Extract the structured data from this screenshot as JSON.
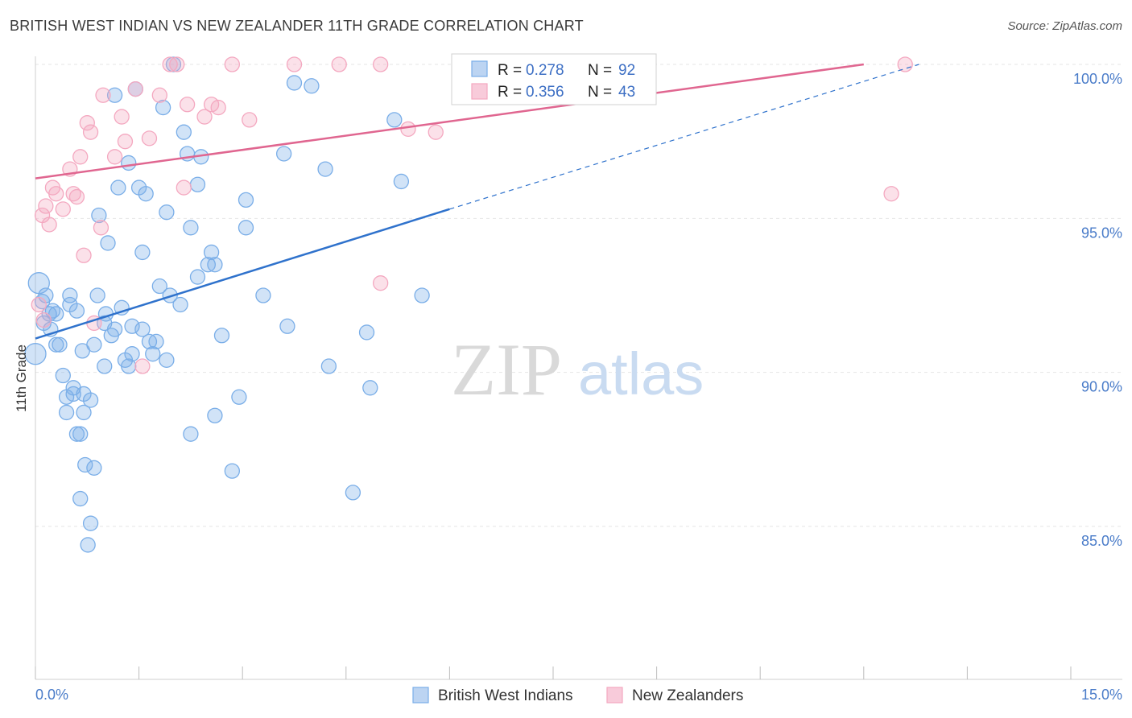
{
  "title": "BRITISH WEST INDIAN VS NEW ZEALANDER 11TH GRADE CORRELATION CHART",
  "source": "Source: ZipAtlas.com",
  "watermark": {
    "zip": "ZIP",
    "atlas": "atlas"
  },
  "chart_data": {
    "type": "scatter",
    "ylabel": "11th Grade",
    "xlim": [
      0,
      15
    ],
    "ylim": [
      80.0,
      100.7
    ],
    "x_tick_labels": {
      "left": "0.0%",
      "right": "15.0%"
    },
    "y_ticks": [
      {
        "value": 100,
        "label": "100.0%"
      },
      {
        "value": 95,
        "label": "95.0%"
      },
      {
        "value": 90,
        "label": "90.0%"
      },
      {
        "value": 85,
        "label": "85.0%"
      }
    ],
    "legend": {
      "entries": [
        {
          "r_label": "R =",
          "r_value": "0.278",
          "n_label": "N =",
          "n_value": "92"
        },
        {
          "r_label": "R =",
          "r_value": "0.356",
          "n_label": "N =",
          "n_value": "43"
        }
      ]
    },
    "series": [
      {
        "name": "British West Indians",
        "color": "#7aaee8",
        "line_color": "#2f72cc",
        "trend": {
          "x0": 0.0,
          "y0": 91.1,
          "x1": 6.0,
          "y1": 95.3,
          "dash_to_x": 12.8,
          "dash_to_y": 100.0
        },
        "points": [
          [
            0.0,
            90.6
          ],
          [
            0.05,
            92.9
          ],
          [
            0.1,
            92.3
          ],
          [
            0.12,
            91.6
          ],
          [
            0.15,
            92.5
          ],
          [
            0.2,
            91.9
          ],
          [
            0.22,
            91.4
          ],
          [
            0.25,
            92.0
          ],
          [
            0.3,
            90.9
          ],
          [
            0.3,
            91.9
          ],
          [
            0.35,
            90.9
          ],
          [
            0.4,
            89.9
          ],
          [
            0.45,
            89.2
          ],
          [
            0.45,
            88.7
          ],
          [
            0.5,
            92.5
          ],
          [
            0.5,
            92.2
          ],
          [
            0.55,
            89.5
          ],
          [
            0.55,
            89.3
          ],
          [
            0.6,
            92.0
          ],
          [
            0.6,
            88.0
          ],
          [
            0.65,
            88.0
          ],
          [
            0.65,
            85.9
          ],
          [
            0.68,
            90.7
          ],
          [
            0.7,
            88.7
          ],
          [
            0.7,
            89.3
          ],
          [
            0.72,
            87.0
          ],
          [
            0.76,
            84.4
          ],
          [
            0.8,
            89.1
          ],
          [
            0.8,
            85.1
          ],
          [
            0.85,
            86.9
          ],
          [
            0.85,
            90.9
          ],
          [
            0.9,
            92.5
          ],
          [
            0.92,
            95.1
          ],
          [
            1.0,
            91.6
          ],
          [
            1.0,
            90.2
          ],
          [
            1.02,
            91.9
          ],
          [
            1.05,
            94.2
          ],
          [
            1.1,
            91.2
          ],
          [
            1.15,
            91.4
          ],
          [
            1.15,
            99.0
          ],
          [
            1.2,
            96.0
          ],
          [
            1.25,
            92.1
          ],
          [
            1.3,
            90.4
          ],
          [
            1.35,
            96.8
          ],
          [
            1.35,
            90.2
          ],
          [
            1.4,
            91.5
          ],
          [
            1.4,
            90.6
          ],
          [
            1.45,
            99.2
          ],
          [
            1.5,
            96.0
          ],
          [
            1.55,
            91.4
          ],
          [
            1.55,
            93.9
          ],
          [
            1.6,
            95.8
          ],
          [
            1.65,
            91.0
          ],
          [
            1.7,
            90.6
          ],
          [
            1.75,
            91.0
          ],
          [
            1.8,
            92.8
          ],
          [
            1.85,
            98.6
          ],
          [
            1.9,
            90.4
          ],
          [
            1.9,
            95.2
          ],
          [
            1.95,
            92.5
          ],
          [
            2.0,
            100.0
          ],
          [
            2.1,
            92.2
          ],
          [
            2.15,
            97.8
          ],
          [
            2.2,
            97.1
          ],
          [
            2.25,
            94.7
          ],
          [
            2.25,
            88.0
          ],
          [
            2.35,
            93.1
          ],
          [
            2.35,
            96.1
          ],
          [
            2.4,
            97.0
          ],
          [
            2.5,
            93.5
          ],
          [
            2.55,
            93.9
          ],
          [
            2.6,
            93.5
          ],
          [
            2.6,
            88.6
          ],
          [
            2.7,
            91.2
          ],
          [
            2.85,
            86.8
          ],
          [
            2.95,
            89.2
          ],
          [
            3.05,
            95.6
          ],
          [
            3.05,
            94.7
          ],
          [
            3.3,
            92.5
          ],
          [
            3.6,
            97.1
          ],
          [
            3.65,
            91.5
          ],
          [
            3.75,
            99.4
          ],
          [
            4.0,
            99.3
          ],
          [
            4.2,
            96.6
          ],
          [
            4.25,
            90.2
          ],
          [
            4.6,
            86.1
          ],
          [
            4.8,
            91.3
          ],
          [
            4.85,
            89.5
          ],
          [
            5.2,
            98.2
          ],
          [
            5.3,
            96.2
          ],
          [
            5.6,
            92.5
          ]
        ]
      },
      {
        "name": "New Zealanders",
        "color": "#f4a8c0",
        "line_color": "#e06690",
        "trend": {
          "x0": 0.0,
          "y0": 96.3,
          "x1": 12.0,
          "y1": 100.0
        },
        "points": [
          [
            0.05,
            92.2
          ],
          [
            0.1,
            95.1
          ],
          [
            0.12,
            91.7
          ],
          [
            0.15,
            95.4
          ],
          [
            0.2,
            94.8
          ],
          [
            0.25,
            96.0
          ],
          [
            0.3,
            95.8
          ],
          [
            0.4,
            95.3
          ],
          [
            0.5,
            96.6
          ],
          [
            0.55,
            95.8
          ],
          [
            0.6,
            95.7
          ],
          [
            0.65,
            97.0
          ],
          [
            0.7,
            93.8
          ],
          [
            0.75,
            98.1
          ],
          [
            0.8,
            97.8
          ],
          [
            0.85,
            91.6
          ],
          [
            0.95,
            94.7
          ],
          [
            0.98,
            99.0
          ],
          [
            1.15,
            97.0
          ],
          [
            1.25,
            98.3
          ],
          [
            1.3,
            97.5
          ],
          [
            1.45,
            99.2
          ],
          [
            1.55,
            90.2
          ],
          [
            1.65,
            97.6
          ],
          [
            1.8,
            99.0
          ],
          [
            1.95,
            100.0
          ],
          [
            2.05,
            100.0
          ],
          [
            2.15,
            96.0
          ],
          [
            2.2,
            98.7
          ],
          [
            2.45,
            98.3
          ],
          [
            2.55,
            98.7
          ],
          [
            2.65,
            98.6
          ],
          [
            2.85,
            100.0
          ],
          [
            3.1,
            98.2
          ],
          [
            3.75,
            100.0
          ],
          [
            4.4,
            100.0
          ],
          [
            5.0,
            92.9
          ],
          [
            5.0,
            100.0
          ],
          [
            5.4,
            97.9
          ],
          [
            5.8,
            97.8
          ],
          [
            6.2,
            100.0
          ],
          [
            12.4,
            95.8
          ],
          [
            12.6,
            100.0
          ]
        ]
      }
    ]
  }
}
